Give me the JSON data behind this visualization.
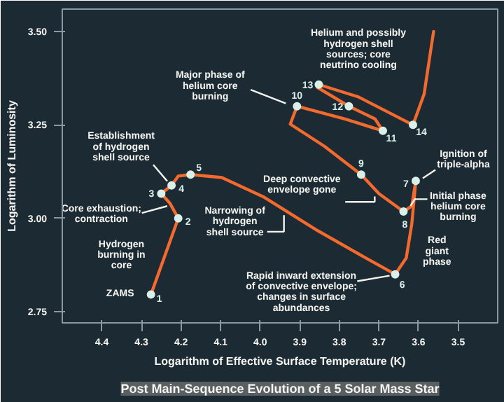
{
  "chart_data": {
    "type": "line",
    "title": "Post Main-Sequence Evolution of a 5 Solar Mass Star",
    "xlabel": "Logarithm of Effective Surface Temperature (K)",
    "ylabel": "Logarithm of Luminosity",
    "xlim": [
      4.5,
      3.4
    ],
    "ylim": [
      2.72,
      3.56
    ],
    "xticks": [
      4.4,
      4.3,
      4.2,
      4.1,
      {
        "value": 4.0,
        "label": "4.0"
      },
      3.9,
      3.8,
      3.7,
      3.6,
      3.5
    ],
    "yticks": [
      2.75,
      {
        "value": 3.0,
        "label": "3.00"
      },
      3.25,
      {
        "value": 3.5,
        "label": "3.50"
      }
    ],
    "grid": false,
    "series": [
      {
        "color": "#f26a2e",
        "x": [
          4.276,
          4.207,
          4.228,
          4.25,
          4.224,
          4.207,
          4.176,
          4.097,
          3.993,
          3.855,
          3.734,
          3.659,
          3.631,
          3.617,
          3.607,
          3.617,
          3.638,
          3.7,
          3.745,
          3.838,
          3.924,
          3.907,
          3.786,
          3.69,
          3.71,
          3.776,
          3.855,
          3.852,
          3.752,
          3.614,
          3.586,
          3.562
        ],
        "values": [
          2.796,
          3.0,
          3.04,
          3.066,
          3.088,
          3.113,
          3.117,
          3.109,
          3.058,
          2.967,
          2.894,
          2.85,
          2.894,
          2.985,
          3.1,
          3.033,
          3.018,
          3.066,
          3.117,
          3.193,
          3.252,
          3.3,
          3.266,
          3.234,
          3.266,
          3.3,
          3.35,
          3.358,
          3.325,
          3.25,
          3.332,
          3.5
        ]
      },
      {
        "type": "scatter",
        "color": "#d8f0e8",
        "x": [
          4.276,
          4.207,
          4.25,
          4.224,
          4.176,
          3.659,
          3.607,
          3.638,
          3.745,
          3.907,
          3.69,
          3.776,
          3.852,
          3.614
        ],
        "values": [
          2.796,
          3.0,
          3.066,
          3.088,
          3.117,
          2.85,
          3.1,
          3.018,
          3.117,
          3.3,
          3.234,
          3.3,
          3.358,
          3.25
        ]
      }
    ],
    "annotations": [
      {
        "text": "1",
        "x": 4.276,
        "y": 2.796
      },
      {
        "text": "2",
        "x": 4.207,
        "y": 3.0
      },
      {
        "text": "3",
        "x": 4.25,
        "y": 3.066
      },
      {
        "text": "4",
        "x": 4.224,
        "y": 3.088
      },
      {
        "text": "5",
        "x": 4.176,
        "y": 3.117
      },
      {
        "text": "6",
        "x": 3.659,
        "y": 2.85
      },
      {
        "text": "7",
        "x": 3.607,
        "y": 3.1
      },
      {
        "text": "8",
        "x": 3.638,
        "y": 3.018
      },
      {
        "text": "9",
        "x": 3.745,
        "y": 3.117
      },
      {
        "text": "10",
        "x": 3.907,
        "y": 3.3
      },
      {
        "text": "11",
        "x": 3.69,
        "y": 3.234
      },
      {
        "text": "12",
        "x": 3.776,
        "y": 3.3
      },
      {
        "text": "13",
        "x": 3.852,
        "y": 3.358
      },
      {
        "text": "14",
        "x": 3.614,
        "y": 3.25
      },
      "Helium and possibly\nhydrogen shell\nsources; core\nneutrino cooling",
      {
        "text": "Major phase of\nhelium core\nburning",
        "x": 3.907,
        "y": 3.3
      },
      {
        "text": "Establishment\nof hydrogen\nshell source",
        "x": 4.224,
        "y": 3.088
      },
      {
        "text": "Core exhaustion;\ncontraction",
        "x": 4.228,
        "y": 3.04
      },
      {
        "text": "Hydrogen\nburning in\ncore",
        "x": 4.241,
        "y": 2.9
      },
      {
        "text": "ZAMS",
        "x": 4.276,
        "y": 2.796
      },
      {
        "text": "Deep convective\nenvelope gone",
        "x": 3.7,
        "y": 3.066
      },
      {
        "text": "Narrowing of\nhydrogen\nshell source",
        "x": 3.94,
        "y": 3.023
      },
      {
        "text": "Rapid inward extension\nof convective envelope;\nchanges in surface\nabundances",
        "x": 3.659,
        "y": 2.85
      },
      {
        "text": "Ignition of\ntriple-alpha",
        "x": 3.607,
        "y": 3.1
      },
      {
        "text": "Initial phase\nhelium core\nburning",
        "x": 3.638,
        "y": 3.018
      },
      {
        "text": "Red\ngiant\nphase",
        "x": 3.617,
        "y": 2.985
      }
    ]
  }
}
